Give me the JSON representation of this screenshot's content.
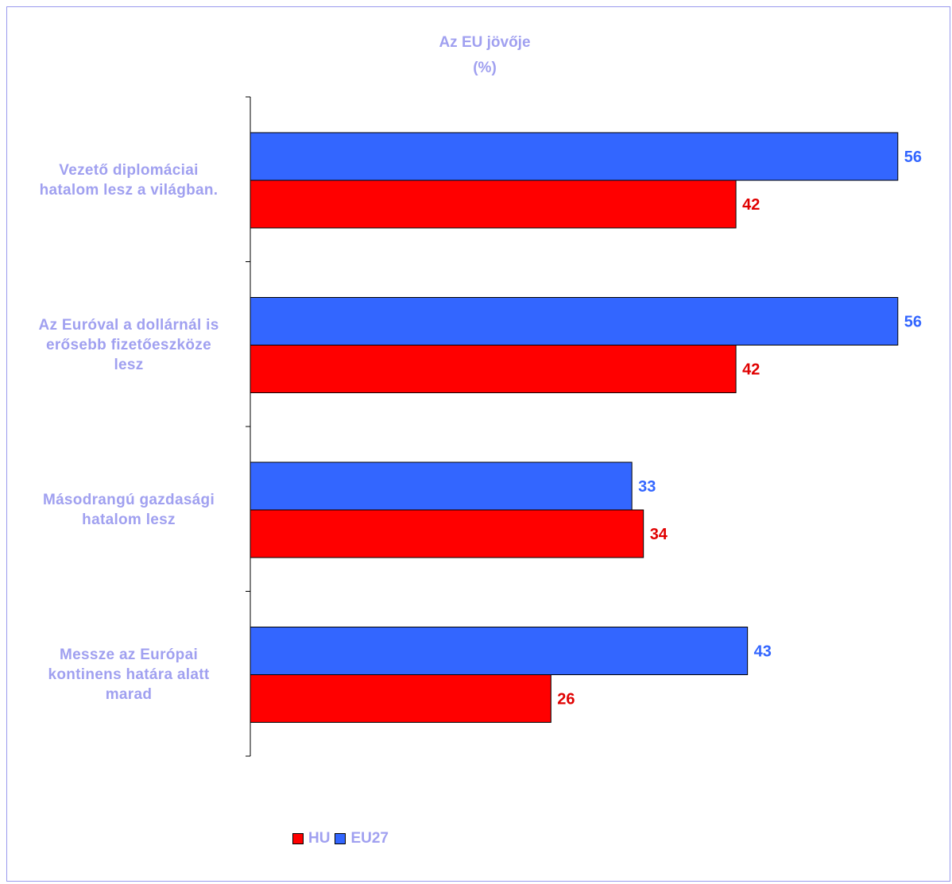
{
  "chart_data": {
    "type": "bar",
    "orientation": "horizontal",
    "title": "Az EU jövője",
    "subtitle": "(%)",
    "categories": [
      [
        "Vezető diplomáciai",
        "hatalom lesz a világban."
      ],
      [
        "Az Euróval a dollárnál is",
        "erősebb fizetőeszköze",
        "lesz"
      ],
      [
        "Másodrangú gazdasági",
        "hatalom lesz"
      ],
      [
        "Messze az Európai",
        "kontinens határa alatt",
        "marad"
      ]
    ],
    "series": [
      {
        "name": "EU27",
        "color": "#3366ff",
        "label_color": "#3366ff",
        "values": [
          56,
          56,
          33,
          43
        ]
      },
      {
        "name": "HU",
        "color": "#ff0000",
        "label_color": "#e00000",
        "values": [
          42,
          42,
          34,
          26
        ]
      }
    ],
    "xlim": [
      0,
      60
    ],
    "grid": false,
    "legend": {
      "placement": "bottom-left",
      "order": [
        "HU",
        "EU27"
      ]
    },
    "label_color": "#a0a0f0"
  }
}
